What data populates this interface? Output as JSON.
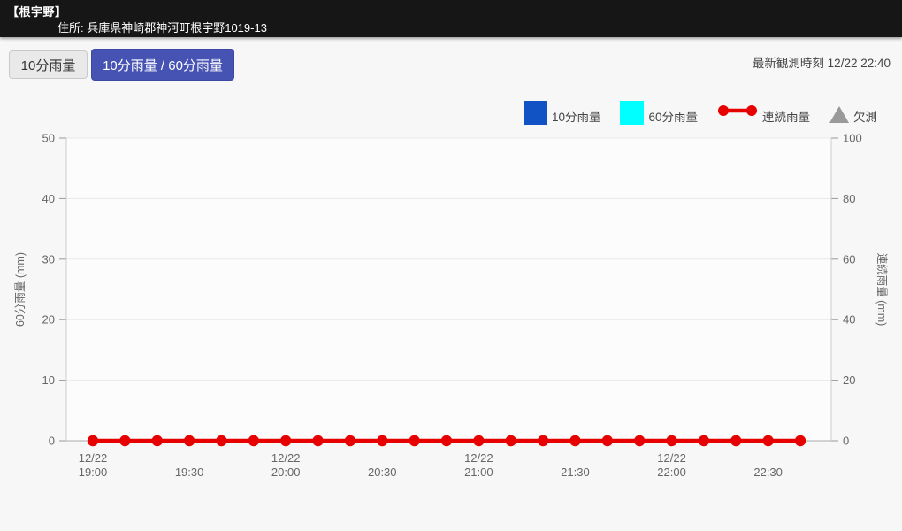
{
  "header": {
    "station_name": "【根宇野】",
    "address": "住所: 兵庫県神崎郡神河町根宇野1019-13"
  },
  "toolbar": {
    "button_10min": "10分雨量",
    "button_combined": "10分雨量 / 60分雨量",
    "latest_observation": "最新観測時刻 12/22 22:40"
  },
  "colors": {
    "active_button": "#4753b3",
    "bar_10min": "#1153c4",
    "bar_60min": "#00ffff",
    "line_continuous": "#e60000",
    "missing": "#999999"
  },
  "legend": {
    "items": [
      {
        "label": "10分雨量",
        "marker": "square",
        "color": "#1153c4"
      },
      {
        "label": "60分雨量",
        "marker": "square",
        "color": "#00ffff"
      },
      {
        "label": "連続雨量",
        "marker": "line-dot",
        "color": "#e60000"
      },
      {
        "label": "欠測",
        "marker": "triangle",
        "color": "#999999"
      }
    ]
  },
  "chart_data": {
    "type": "line",
    "title": "",
    "x": [
      "19:00",
      "19:10",
      "19:20",
      "19:30",
      "19:40",
      "19:50",
      "20:00",
      "20:10",
      "20:20",
      "20:30",
      "20:40",
      "20:50",
      "21:00",
      "21:10",
      "21:20",
      "21:30",
      "21:40",
      "21:50",
      "22:00",
      "22:10",
      "22:20",
      "22:30",
      "22:40"
    ],
    "series": [
      {
        "name": "10分雨量",
        "kind": "bar",
        "axis": "left",
        "color": "#1153c4",
        "values": [
          0,
          0,
          0,
          0,
          0,
          0,
          0,
          0,
          0,
          0,
          0,
          0,
          0,
          0,
          0,
          0,
          0,
          0,
          0,
          0,
          0,
          0,
          0
        ]
      },
      {
        "name": "60分雨量",
        "kind": "bar",
        "axis": "left",
        "color": "#00ffff",
        "values": [
          0,
          0,
          0,
          0,
          0,
          0,
          0,
          0,
          0,
          0,
          0,
          0,
          0,
          0,
          0,
          0,
          0,
          0,
          0,
          0,
          0,
          0,
          0
        ]
      },
      {
        "name": "連続雨量",
        "kind": "line",
        "axis": "right",
        "color": "#e60000",
        "values": [
          0,
          0,
          0,
          0,
          0,
          0,
          0,
          0,
          0,
          0,
          0,
          0,
          0,
          0,
          0,
          0,
          0,
          0,
          0,
          0,
          0,
          0,
          0
        ]
      }
    ],
    "left_axis": {
      "label": "60分雨量 (mm)",
      "min": 0,
      "max": 50,
      "ticks": [
        0,
        10,
        20,
        30,
        40,
        50
      ]
    },
    "right_axis": {
      "label": "連続雨量 (mm)",
      "min": 0,
      "max": 100,
      "ticks": [
        0,
        20,
        40,
        60,
        80,
        100
      ]
    },
    "x_tick_labels": [
      {
        "index": 0,
        "line1": "12/22",
        "line2": "19:00"
      },
      {
        "index": 3,
        "line1": "",
        "line2": "19:30"
      },
      {
        "index": 6,
        "line1": "12/22",
        "line2": "20:00"
      },
      {
        "index": 9,
        "line1": "",
        "line2": "20:30"
      },
      {
        "index": 12,
        "line1": "12/22",
        "line2": "21:00"
      },
      {
        "index": 15,
        "line1": "",
        "line2": "21:30"
      },
      {
        "index": 18,
        "line1": "12/22",
        "line2": "22:00"
      },
      {
        "index": 21,
        "line1": "",
        "line2": "22:30"
      }
    ],
    "grid": true,
    "legend_position": "top-right"
  }
}
